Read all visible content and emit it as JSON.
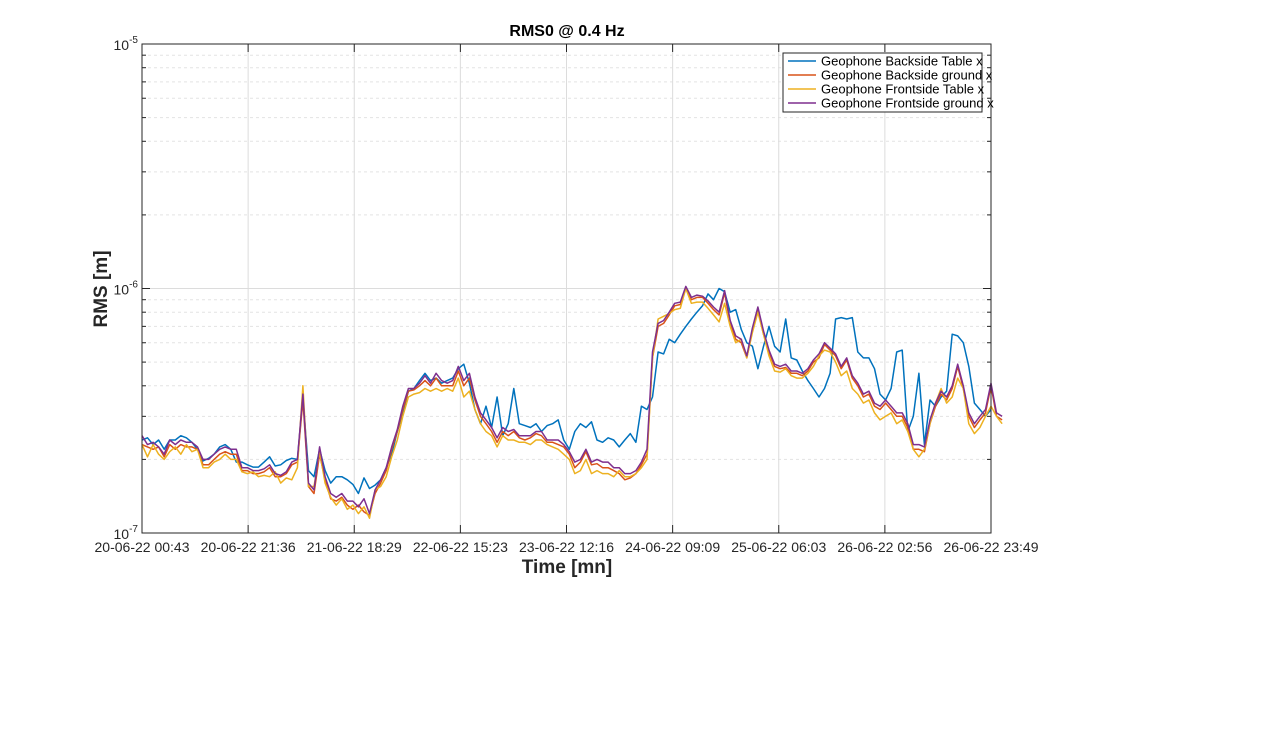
{
  "chart_data": {
    "type": "line",
    "title": "RMS0 @ 0.4 Hz",
    "xlabel": "Time [mn]",
    "ylabel": "RMS [m]",
    "y_scale": "log",
    "ylim": [
      1e-07,
      1e-05
    ],
    "y_ticks": [
      {
        "value": 1e-07,
        "base": "10",
        "exp": "-7"
      },
      {
        "value": 1e-06,
        "base": "10",
        "exp": "-6"
      },
      {
        "value": 1e-05,
        "base": "10",
        "exp": "-5"
      }
    ],
    "x_ticks": [
      "20-06-22 00:43",
      "20-06-22 21:36",
      "21-06-22 18:29",
      "22-06-22 15:23",
      "23-06-22 12:16",
      "24-06-22 09:09",
      "25-06-22 06:03",
      "26-06-22 02:56",
      "26-06-22 23:49"
    ],
    "x_step_hours": 1,
    "grid": true,
    "legend_position": "top-right",
    "series": [
      {
        "name": "Geophone Backside Table x",
        "color": "#0072BD",
        "values": [
          2.4e-07,
          2.45e-07,
          2.3e-07,
          2.4e-07,
          2.2e-07,
          2.4e-07,
          2.4e-07,
          2.5e-07,
          2.45e-07,
          2.35e-07,
          2.2e-07,
          1.97e-07,
          2.02e-07,
          2.1e-07,
          2.25e-07,
          2.3e-07,
          2.2e-07,
          1.95e-07,
          1.95e-07,
          1.9e-07,
          1.86e-07,
          1.86e-07,
          1.95e-07,
          2.05e-07,
          1.88e-07,
          1.9e-07,
          1.98e-07,
          2.02e-07,
          2e-07,
          3.6e-07,
          1.8e-07,
          1.7e-07,
          2.2e-07,
          1.8e-07,
          1.6e-07,
          1.7e-07,
          1.7e-07,
          1.65e-07,
          1.58e-07,
          1.45e-07,
          1.68e-07,
          1.52e-07,
          1.57e-07,
          1.65e-07,
          1.85e-07,
          2.1e-07,
          2.6e-07,
          3.1e-07,
          3.8e-07,
          3.9e-07,
          4.2e-07,
          4.5e-07,
          4.2e-07,
          4.3e-07,
          4.1e-07,
          4.2e-07,
          4.3e-07,
          4.7e-07,
          4.9e-07,
          4.1e-07,
          3.2e-07,
          2.8e-07,
          3.3e-07,
          2.7e-07,
          3.6e-07,
          2.5e-07,
          2.8e-07,
          3.9e-07,
          2.8e-07,
          2.75e-07,
          2.7e-07,
          2.8e-07,
          2.6e-07,
          2.75e-07,
          2.8e-07,
          2.9e-07,
          2.4e-07,
          2.2e-07,
          2.6e-07,
          2.8e-07,
          2.7e-07,
          2.85e-07,
          2.4e-07,
          2.35e-07,
          2.45e-07,
          2.4e-07,
          2.25e-07,
          2.4e-07,
          2.55e-07,
          2.35e-07,
          3.3e-07,
          3.2e-07,
          3.6e-07,
          5.5e-07,
          5.4e-07,
          6.2e-07,
          6e-07,
          6.5e-07,
          7e-07,
          7.5e-07,
          8e-07,
          8.5e-07,
          9.5e-07,
          9e-07,
          1e-06,
          9.7e-07,
          8e-07,
          8.2e-07,
          6.8e-07,
          6e-07,
          5.8e-07,
          4.7e-07,
          5.8e-07,
          7e-07,
          5.8e-07,
          5.5e-07,
          7.5e-07,
          5.2e-07,
          5.1e-07,
          4.6e-07,
          4.2e-07,
          3.9e-07,
          3.6e-07,
          3.9e-07,
          4.5e-07,
          7.5e-07,
          7.6e-07,
          7.5e-07,
          7.6e-07,
          5.5e-07,
          5.2e-07,
          5.2e-07,
          4.7e-07,
          3.7e-07,
          3.5e-07,
          3.9e-07,
          5.5e-07,
          5.6e-07,
          2.6e-07,
          3e-07,
          4.5e-07,
          2.3e-07,
          3.5e-07,
          3.3e-07,
          3.6e-07,
          3.8e-07,
          6.5e-07,
          6.4e-07,
          6e-07,
          4.8e-07,
          3.4e-07,
          3.2e-07,
          3e-07,
          3.2e-07
        ],
        "x_start": 0
      },
      {
        "name": "Geophone Backside ground x",
        "color": "#D95319",
        "values": [
          2.3e-07,
          2.25e-07,
          2.2e-07,
          2.25e-07,
          2.05e-07,
          2.3e-07,
          2.2e-07,
          2.3e-07,
          2.25e-07,
          2.25e-07,
          2.2e-07,
          1.9e-07,
          1.9e-07,
          2e-07,
          2.1e-07,
          2.15e-07,
          2.1e-07,
          2.1e-07,
          1.8e-07,
          1.8e-07,
          1.75e-07,
          1.75e-07,
          1.78e-07,
          1.85e-07,
          1.7e-07,
          1.7e-07,
          1.75e-07,
          1.9e-07,
          1.95e-07,
          3.5e-07,
          1.55e-07,
          1.45e-07,
          2.1e-07,
          1.65e-07,
          1.38e-07,
          1.35e-07,
          1.4e-07,
          1.3e-07,
          1.25e-07,
          1.3e-07,
          1.22e-07,
          1.18e-07,
          1.45e-07,
          1.6e-07,
          1.8e-07,
          2.2e-07,
          2.6e-07,
          3.2e-07,
          3.8e-07,
          3.85e-07,
          4e-07,
          4.2e-07,
          4e-07,
          4.3e-07,
          4e-07,
          4e-07,
          4e-07,
          4.6e-07,
          4e-07,
          4.3e-07,
          3.5e-07,
          3e-07,
          2.8e-07,
          2.6e-07,
          2.35e-07,
          2.6e-07,
          2.5e-07,
          2.6e-07,
          2.45e-07,
          2.4e-07,
          2.45e-07,
          2.55e-07,
          2.5e-07,
          2.35e-07,
          2.35e-07,
          2.3e-07,
          2.25e-07,
          2.1e-07,
          1.85e-07,
          1.95e-07,
          2.15e-07,
          1.9e-07,
          1.92e-07,
          1.85e-07,
          1.85e-07,
          1.8e-07,
          1.75e-07,
          1.65e-07,
          1.68e-07,
          1.75e-07,
          1.9e-07,
          2.1e-07,
          5.2e-07,
          7e-07,
          7.2e-07,
          7.8e-07,
          8.5e-07,
          8.6e-07,
          1e-06,
          9e-07,
          9.2e-07,
          9.2e-07,
          8.7e-07,
          8.2e-07,
          7.8e-07,
          9.6e-07,
          7.2e-07,
          6.2e-07,
          6e-07,
          5.2e-07,
          6.7e-07,
          8.2e-07,
          6.5e-07,
          5.5e-07,
          4.8e-07,
          4.7e-07,
          4.75e-07,
          4.5e-07,
          4.5e-07,
          4.4e-07,
          4.6e-07,
          5e-07,
          5.2e-07,
          5.9e-07,
          5.6e-07,
          5.3e-07,
          4.7e-07,
          5.1e-07,
          4.3e-07,
          4e-07,
          3.6e-07,
          3.7e-07,
          3.3e-07,
          3.2e-07,
          3.4e-07,
          3.2e-07,
          3e-07,
          3e-07,
          2.7e-07,
          2.2e-07,
          2.2e-07,
          2.15e-07,
          2.8e-07,
          3.3e-07,
          3.7e-07,
          3.5e-07,
          3.9e-07,
          4.8e-07,
          3.9e-07,
          3e-07,
          2.7e-07,
          2.9e-07,
          3.1e-07,
          4e-07,
          3e-07,
          2.9e-07
        ],
        "x_start": 0
      },
      {
        "name": "Geophone Frontside Table x",
        "color": "#EDB120",
        "values": [
          2.3e-07,
          2.05e-07,
          2.3e-07,
          2.1e-07,
          2e-07,
          2.15e-07,
          2.25e-07,
          2.1e-07,
          2.3e-07,
          2.15e-07,
          2.2e-07,
          1.85e-07,
          1.85e-07,
          1.95e-07,
          2e-07,
          2.1e-07,
          2e-07,
          2e-07,
          1.78e-07,
          1.75e-07,
          1.78e-07,
          1.7e-07,
          1.72e-07,
          1.7e-07,
          1.78e-07,
          1.6e-07,
          1.68e-07,
          1.65e-07,
          1.85e-07,
          4e-07,
          1.55e-07,
          1.55e-07,
          2.15e-07,
          1.6e-07,
          1.4e-07,
          1.3e-07,
          1.38e-07,
          1.25e-07,
          1.3e-07,
          1.2e-07,
          1.28e-07,
          1.15e-07,
          1.5e-07,
          1.55e-07,
          1.7e-07,
          2.05e-07,
          2.4e-07,
          3e-07,
          3.6e-07,
          3.7e-07,
          3.75e-07,
          3.9e-07,
          3.8e-07,
          3.9e-07,
          3.8e-07,
          3.9e-07,
          3.8e-07,
          4.3e-07,
          3.6e-07,
          3.8e-07,
          3.2e-07,
          2.8e-07,
          2.6e-07,
          2.5e-07,
          2.25e-07,
          2.5e-07,
          2.4e-07,
          2.4e-07,
          2.35e-07,
          2.35e-07,
          2.3e-07,
          2.4e-07,
          2.4e-07,
          2.3e-07,
          2.25e-07,
          2.2e-07,
          2.1e-07,
          2e-07,
          1.75e-07,
          1.8e-07,
          2e-07,
          1.75e-07,
          1.8e-07,
          1.75e-07,
          1.75e-07,
          1.7e-07,
          1.8e-07,
          1.7e-07,
          1.7e-07,
          1.75e-07,
          1.85e-07,
          2e-07,
          5.2e-07,
          7.5e-07,
          7.7e-07,
          7.9e-07,
          8.2e-07,
          8.3e-07,
          1e-06,
          8.7e-07,
          8.8e-07,
          8.8e-07,
          8.3e-07,
          7.8e-07,
          7.3e-07,
          8.7e-07,
          7e-07,
          6e-07,
          6.2e-07,
          5.2e-07,
          6.6e-07,
          8e-07,
          6.5e-07,
          5.3e-07,
          4.6e-07,
          4.55e-07,
          4.7e-07,
          4.4e-07,
          4.3e-07,
          4.3e-07,
          4.5e-07,
          4.8e-07,
          5.3e-07,
          5.6e-07,
          5.5e-07,
          5e-07,
          4.4e-07,
          4.6e-07,
          3.9e-07,
          3.7e-07,
          3.4e-07,
          3.5e-07,
          3.1e-07,
          2.9e-07,
          3e-07,
          3.1e-07,
          2.8e-07,
          2.9e-07,
          2.6e-07,
          2.2e-07,
          2.05e-07,
          2.2e-07,
          2.8e-07,
          3.4e-07,
          3.9e-07,
          3.4e-07,
          3.6e-07,
          4.3e-07,
          3.9e-07,
          2.8e-07,
          2.55e-07,
          2.7e-07,
          3e-07,
          3.3e-07,
          3e-07,
          2.8e-07
        ],
        "x_start": 0
      },
      {
        "name": "Geophone Frontside ground x",
        "color": "#7E2F8E",
        "values": [
          2.5e-07,
          2.3e-07,
          2.35e-07,
          2.25e-07,
          2.1e-07,
          2.4e-07,
          2.3e-07,
          2.4e-07,
          2.35e-07,
          2.35e-07,
          2.25e-07,
          2e-07,
          2e-07,
          2.1e-07,
          2.2e-07,
          2.25e-07,
          2.2e-07,
          2.2e-07,
          1.85e-07,
          1.85e-07,
          1.8e-07,
          1.8e-07,
          1.83e-07,
          1.9e-07,
          1.75e-07,
          1.72e-07,
          1.78e-07,
          1.95e-07,
          2e-07,
          3.7e-07,
          1.6e-07,
          1.5e-07,
          2.25e-07,
          1.7e-07,
          1.45e-07,
          1.4e-07,
          1.45e-07,
          1.35e-07,
          1.35e-07,
          1.28e-07,
          1.38e-07,
          1.2e-07,
          1.5e-07,
          1.65e-07,
          1.85e-07,
          2.25e-07,
          2.65e-07,
          3.3e-07,
          3.9e-07,
          3.9e-07,
          4.1e-07,
          4.4e-07,
          4.1e-07,
          4.5e-07,
          4.2e-07,
          4.1e-07,
          4.2e-07,
          4.8e-07,
          4.2e-07,
          4.5e-07,
          3.6e-07,
          3.1e-07,
          2.9e-07,
          2.7e-07,
          2.45e-07,
          2.7e-07,
          2.6e-07,
          2.65e-07,
          2.5e-07,
          2.5e-07,
          2.5e-07,
          2.6e-07,
          2.6e-07,
          2.4e-07,
          2.4e-07,
          2.4e-07,
          2.3e-07,
          2.15e-07,
          1.95e-07,
          2e-07,
          2.2e-07,
          1.95e-07,
          2e-07,
          1.95e-07,
          1.95e-07,
          1.85e-07,
          1.85e-07,
          1.75e-07,
          1.75e-07,
          1.8e-07,
          1.95e-07,
          2.2e-07,
          5.5e-07,
          7.2e-07,
          7.4e-07,
          8e-07,
          8.7e-07,
          8.8e-07,
          1.02e-06,
          9.2e-07,
          9.4e-07,
          9.3e-07,
          8.9e-07,
          8.4e-07,
          8e-07,
          9.8e-07,
          7.4e-07,
          6.4e-07,
          6.2e-07,
          5.3e-07,
          6.9e-07,
          8.4e-07,
          6.7e-07,
          5.6e-07,
          4.9e-07,
          4.8e-07,
          4.9e-07,
          4.6e-07,
          4.6e-07,
          4.5e-07,
          4.7e-07,
          5.1e-07,
          5.4e-07,
          6e-07,
          5.7e-07,
          5.4e-07,
          4.8e-07,
          5.2e-07,
          4.4e-07,
          4.1e-07,
          3.7e-07,
          3.8e-07,
          3.4e-07,
          3.3e-07,
          3.5e-07,
          3.3e-07,
          3.1e-07,
          3.1e-07,
          2.8e-07,
          2.3e-07,
          2.3e-07,
          2.25e-07,
          2.9e-07,
          3.4e-07,
          3.8e-07,
          3.6e-07,
          4e-07,
          4.9e-07,
          4e-07,
          3.1e-07,
          2.8e-07,
          3e-07,
          3.2e-07,
          4.1e-07,
          3.1e-07,
          3e-07
        ],
        "x_start": 0
      }
    ]
  }
}
